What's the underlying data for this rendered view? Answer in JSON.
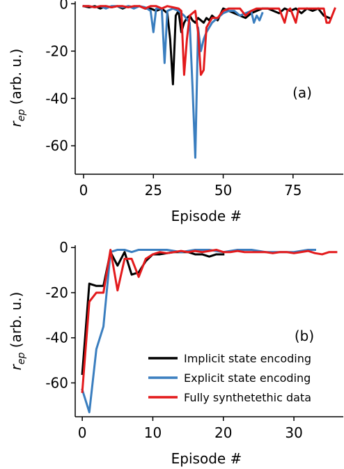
{
  "chart_data": [
    {
      "type": "line",
      "panel_label": "(a)",
      "xlabel": "Episode #",
      "ylabel_base": "r",
      "ylabel_sub": "ep",
      "ylabel_units": "(arb. u.)",
      "xlim": [
        -3,
        93
      ],
      "ylim": [
        -72,
        1
      ],
      "xticks": [
        0,
        25,
        50,
        75
      ],
      "yticks": [
        0,
        -20,
        -40,
        -60
      ],
      "series": [
        {
          "color": "#000000",
          "x": [
            0,
            2,
            4,
            6,
            8,
            10,
            12,
            14,
            16,
            18,
            20,
            22,
            24,
            26,
            28,
            30,
            31,
            32,
            33,
            34,
            35,
            36,
            37,
            38,
            39,
            40,
            41,
            42,
            43,
            44,
            45,
            46,
            48,
            50,
            52,
            54,
            56,
            58,
            60,
            62,
            64,
            66,
            68,
            70,
            72,
            74,
            76,
            78,
            80,
            82,
            84,
            86,
            88
          ],
          "y": [
            -1,
            -1.5,
            -1,
            -2,
            -1,
            -1.5,
            -1,
            -2,
            -1,
            -1.5,
            -1,
            -2,
            -2,
            -3,
            -2,
            -4,
            -15,
            -34,
            -5,
            -3,
            -12,
            -8,
            -6,
            -5,
            -7,
            -8,
            -6,
            -7,
            -8,
            -6,
            -7,
            -5,
            -7,
            -2,
            -3,
            -4,
            -5,
            -6,
            -4,
            -3,
            -2,
            -2,
            -3,
            -4,
            -2,
            -3,
            -2,
            -4,
            -2,
            -3,
            -2,
            -5,
            -6
          ]
        },
        {
          "color": "#3a7ebf",
          "x": [
            0,
            2,
            4,
            6,
            8,
            10,
            12,
            14,
            16,
            18,
            20,
            22,
            24,
            25,
            26,
            28,
            29,
            30,
            32,
            34,
            36,
            38,
            39,
            40,
            41,
            42,
            43,
            44,
            46,
            48,
            50,
            52,
            54,
            56,
            58,
            60,
            61,
            62,
            63,
            64
          ],
          "y": [
            -1,
            -1,
            -1.5,
            -1,
            -2,
            -1,
            -1,
            -1.5,
            -1,
            -2,
            -1,
            -1.5,
            -3,
            -12,
            -2,
            -2,
            -25,
            -3,
            -2,
            -3,
            -5,
            -8,
            -35,
            -65,
            -10,
            -20,
            -15,
            -12,
            -8,
            -6,
            -4,
            -3,
            -3,
            -5,
            -4,
            -3,
            -8,
            -5,
            -7,
            -4
          ]
        },
        {
          "color": "#e31a1c",
          "x": [
            0,
            2,
            4,
            6,
            8,
            10,
            12,
            14,
            16,
            18,
            20,
            22,
            24,
            26,
            28,
            30,
            32,
            34,
            35,
            36,
            37,
            38,
            40,
            41,
            42,
            43,
            44,
            46,
            48,
            50,
            52,
            54,
            56,
            58,
            60,
            62,
            64,
            66,
            68,
            70,
            72,
            73,
            74,
            76,
            77,
            78,
            80,
            82,
            84,
            86,
            87,
            88,
            90
          ],
          "y": [
            -1,
            -1,
            -1.5,
            -1,
            -1,
            -1.5,
            -1,
            -1,
            -1.5,
            -1,
            -1,
            -2,
            -1,
            -1,
            -2,
            -1,
            -1.5,
            -2,
            -3,
            -30,
            -15,
            -5,
            -3,
            -12,
            -30,
            -28,
            -10,
            -6,
            -6,
            -3,
            -2,
            -2,
            -2,
            -5,
            -3,
            -2,
            -2,
            -2,
            -2,
            -2,
            -8,
            -3,
            -2,
            -8,
            -2,
            -2,
            -2,
            -2,
            -2,
            -2,
            -8,
            -8,
            -2
          ]
        }
      ]
    },
    {
      "type": "line",
      "panel_label": "(b)",
      "xlabel": "Episode #",
      "ylabel_base": "r",
      "ylabel_sub": "ep",
      "ylabel_units": "(arb. u.)",
      "xlim": [
        -1,
        37
      ],
      "ylim": [
        -75,
        1
      ],
      "xticks": [
        0,
        10,
        20,
        30
      ],
      "yticks": [
        0,
        -20,
        -40,
        -60
      ],
      "legend_position": "lower-right",
      "series": [
        {
          "name": "Implicit state encoding",
          "color": "#000000",
          "x": [
            0,
            1,
            2,
            3,
            4,
            5,
            6,
            7,
            8,
            9,
            10,
            11,
            12,
            13,
            14,
            15,
            16,
            17,
            18,
            19,
            20
          ],
          "y": [
            -56,
            -16,
            -17,
            -17,
            -2,
            -8,
            -2,
            -12,
            -11,
            -6,
            -3,
            -3,
            -2.5,
            -2,
            -2,
            -2,
            -3,
            -3,
            -4,
            -3,
            -3
          ]
        },
        {
          "name": "Explicit state encoding",
          "color": "#3a7ebf",
          "x": [
            0,
            1,
            2,
            3,
            4,
            5,
            6,
            7,
            8,
            9,
            10,
            12,
            14,
            16,
            18,
            20,
            22,
            24,
            26,
            28,
            30,
            32,
            33
          ],
          "y": [
            -63,
            -73,
            -45,
            -35,
            -2,
            -1,
            -1,
            -2,
            -1,
            -1,
            -1,
            -1,
            -2,
            -1,
            -1,
            -2,
            -1,
            -1,
            -2,
            -2,
            -2,
            -1,
            -1
          ]
        },
        {
          "name": "Fully synthetethic data",
          "color": "#e31a1c",
          "x": [
            0,
            1,
            2,
            3,
            4,
            5,
            6,
            7,
            8,
            9,
            10,
            11,
            12,
            13,
            14,
            15,
            16,
            17,
            18,
            19,
            20,
            21,
            22,
            23,
            24,
            25,
            26,
            27,
            28,
            29,
            30,
            31,
            32,
            33,
            34,
            35,
            36
          ],
          "y": [
            -64,
            -24,
            -20,
            -20,
            -1,
            -19,
            -5,
            -5,
            -13,
            -5,
            -3,
            -2,
            -2.5,
            -2,
            -1.5,
            -2,
            -1.5,
            -2,
            -1.5,
            -1,
            -2,
            -2,
            -1.5,
            -2,
            -2,
            -2,
            -2,
            -2.5,
            -2,
            -2,
            -2.5,
            -2,
            -1.5,
            -2.5,
            -3,
            -2,
            -2
          ]
        }
      ]
    }
  ]
}
